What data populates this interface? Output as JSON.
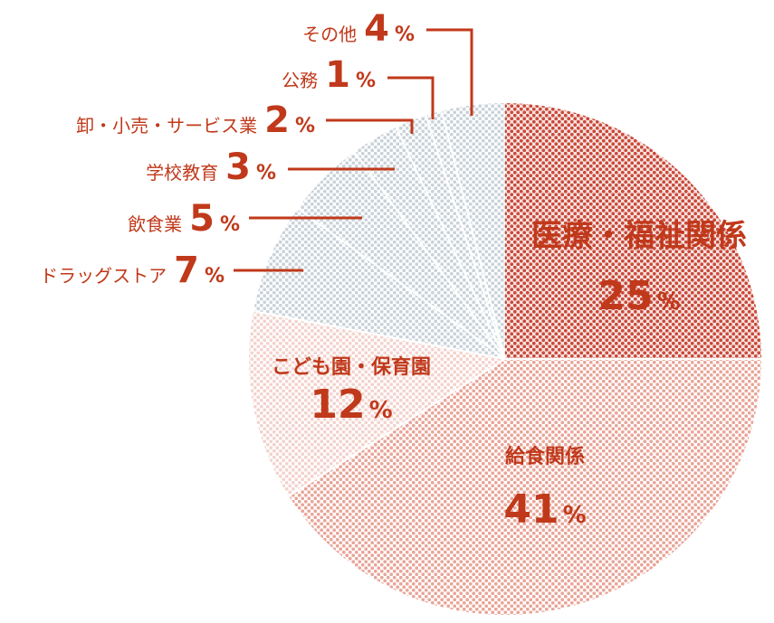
{
  "chart_data": {
    "type": "pie",
    "unit": "%",
    "slices": [
      {
        "label": "医療・福祉関係",
        "value": 25,
        "fill": "pat-red",
        "placement": "inside"
      },
      {
        "label": "給食関係",
        "value": 41,
        "fill": "pat-salmon",
        "placement": "inside"
      },
      {
        "label": "こども園・保育園",
        "value": 12,
        "fill": "pat-pink",
        "placement": "inside"
      },
      {
        "label": "ドラッグストア",
        "value": 7,
        "fill": "pat-gray",
        "placement": "outside"
      },
      {
        "label": "飲食業",
        "value": 5,
        "fill": "pat-gray",
        "placement": "outside"
      },
      {
        "label": "学校教育",
        "value": 3,
        "fill": "pat-gray",
        "placement": "outside"
      },
      {
        "label": "卸・小売・サービス業",
        "value": 2,
        "fill": "pat-gray",
        "placement": "outside"
      },
      {
        "label": "公務",
        "value": 1,
        "fill": "pat-gray",
        "placement": "outside"
      },
      {
        "label": "その他",
        "value": 4,
        "fill": "pat-gray",
        "placement": "outside"
      }
    ],
    "colors": {
      "label_text": "#c0391b",
      "red_dots": "#c9493a",
      "salmon_dots": "#e8a598",
      "pink_dots": "#f3d2cc",
      "gray_dots": "#c9d2d9"
    }
  }
}
